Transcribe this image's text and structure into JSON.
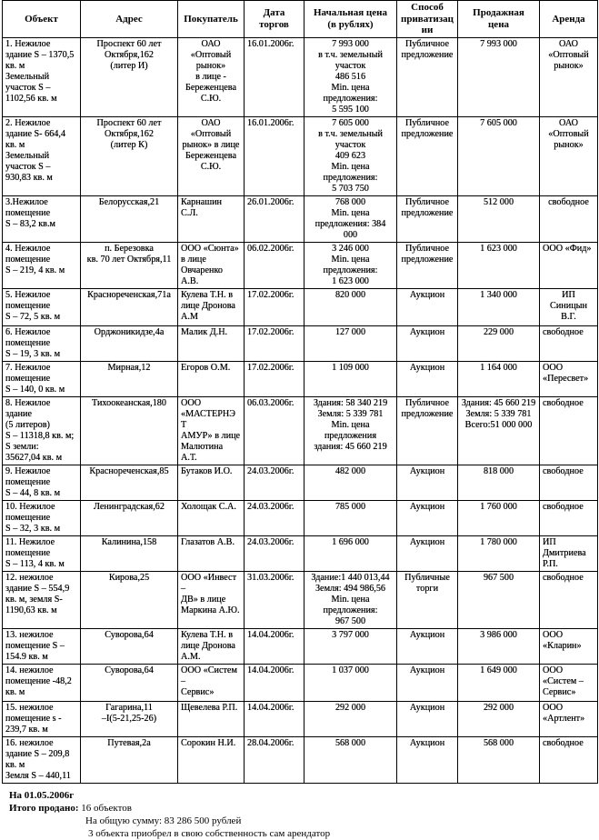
{
  "table": {
    "headers": [
      "Объект",
      "Адрес",
      "Покупатель",
      "Дата\nторгов",
      "Начальная цена\n(в рублях)",
      "Способ\nприватизации",
      "Продажная\nцена",
      "Аренда"
    ],
    "rows": [
      [
        "1. Нежилое\nздание S – 1370,5\nкв. м\nЗемельный\nучасток S –\n1102,56 кв. м",
        "Проспект 60 лет\nОктября,162\n(литер И)",
        "ОАО «Оптовый\nрынок»\nв лице  -\nБереженцева\nС.Ю.",
        "16.01.2006г.",
        "7 993 000\nв т.ч. земельный\nучасток\n486 516\nMin. цена\nпредложения:\n5 595 100",
        "Публичное\nпредложение",
        "7 993 000",
        "ОАО\n«Оптовый\nрынок»"
      ],
      [
        "2. Нежилое\nздание S- 664,4\nкв. м\nЗемельный\nучасток S –\n930,83 кв. м",
        "Проспект 60 лет\nОктября,162\n(литер К)",
        "ОАО «Оптовый\nрынок» в лице\nБереженцева\nС.Ю.",
        "16.01.2006г.",
        "7 605 000\nв т.ч. земельный\nучасток\n409 623\nMin. цена\nпредложения:\n5 703 750",
        "Публичное\nпредложение",
        "7 605 000",
        "ОАО\n«Оптовый\nрынок»"
      ],
      [
        "3.Нежилое\nпомещение\nS – 83,2 кв.м",
        "Белорусская,21",
        "Карнашин С.Л.",
        "26.01.2006г.",
        "768 000\nMin. цена\nпредложения: 384\n000",
        "Публичное\nпредложение",
        "512 000",
        "свободное"
      ],
      [
        "4. Нежилое\nпомещение\nS – 219, 4 кв. м",
        "п. Березовка\nкв. 70 лет Октября,11",
        "ООО «Сюнта»\nв лице\nОвчаренко А.В.",
        "06.02.2006г.",
        "3 246 000\nMin. цена\nпредложения:\n1 623 000",
        "Публичное\nпредложение",
        "1 623 000",
        "ООО «Фид»"
      ],
      [
        "5. Нежилое\nпомещение\nS – 72, 5 кв. м",
        "Краснореченская,71а",
        "Кулева Т.Н. в\nлице Дронова\nА.М",
        "17.02.2006г.",
        "820 000",
        "Аукцион",
        "1 340 000",
        "ИП Синицын\nВ.Г."
      ],
      [
        "6. Нежилое\nпомещение\nS – 19, 3 кв. м",
        "Орджоникидзе,4а",
        "Малик Д.Н.",
        "17.02.2006г.",
        "127 000",
        "Аукцион",
        "229 000",
        "свободное"
      ],
      [
        "7. Нежилое\nпомещение\nS – 140, 0 кв. м",
        "Мирная,12",
        "Егоров О.М.",
        "17.02.2006г.",
        "1 109 000",
        "Аукцион",
        "1 164 000",
        "ООО\n«Пересвет»"
      ],
      [
        "8. Нежилое\nздание\n(5 литеров)\nS – 11318,8 кв. м;\nS земли:\n35627,04 кв. м",
        "Тихоокеанская,180",
        "ООО\n«МАСТЕРНЭТ\nАМУР» в лице\nМалютина А.Т.",
        "06.03.2006г.",
        "Здания: 58 340 219\nЗемля: 5 339 781\nMin. цена\nпредложения\nздания: 45 660 219",
        "Публичное\nпредложение",
        "Здания: 45 660 219\nЗемля: 5 339 781\nВсего:51 000 000",
        "свободное"
      ],
      [
        "9. Нежилое\nпомещение\nS – 44, 8 кв. м",
        "Краснореченская,85",
        "Бутаков И.О.",
        "24.03.2006г.",
        "482 000",
        "Аукцион",
        "818 000",
        "свободное"
      ],
      [
        "10. Нежилое\nпомещение\nS – 32, 3 кв. м",
        "Ленинградская,62",
        "Холощак С.А.",
        "24.03.2006г.",
        "785 000",
        "Аукцион",
        "1 760 000",
        "свободное"
      ],
      [
        "11. Нежилое\nпомещение\nS – 113, 4 кв. м",
        "Калинина,158",
        "Глазатов А.В.",
        "24.03.2006г.",
        "1 696 000",
        "Аукцион",
        "1 780 000",
        "ИП\nДмитриева\nР.П."
      ],
      [
        "12. нежилое\nздание S – 554,9\nкв. м, земля S-\n1190,63 кв. м",
        "Кирова,25",
        "ООО «Инвест –\nДВ» в лице\nМаркина А.Ю.",
        "31.03.2006г.",
        "Здание:1 440 013,44\nЗемля: 494 986,56\nMin. цена\nпредложения:\n967 500",
        "Публичные\nторги",
        "967 500",
        "свободное"
      ],
      [
        "13. нежилое\nпомещение S –\n154.9 кв. м",
        "Суворова,64",
        "Кулева Т.Н. в\nлице Дронова\nА.М.",
        "14.04.2006г.",
        "3 797 000",
        "Аукцион",
        "3 986 000",
        "ООО\n«Кларин»"
      ],
      [
        "14. нежилое\nпомещение -48,2\nкв. м",
        "Суворова,64",
        "ООО «Систем –\nСервис»",
        "14.04.2006г.",
        "1 037 000",
        "Аукцион",
        "1 649 000",
        "ООО\n«Систем –\nСервис»"
      ],
      [
        "15. нежилое\nпомещение s -\n239,7 кв. м",
        "Гагарина,11\n–I(5-21,25-26)",
        "Щевелева Р.П.",
        "14.04.2006г.",
        "292 000",
        "Аукцион",
        "292 000",
        "ООО\n«Артлент»"
      ],
      [
        "16. нежилое\nздание S – 209,8\nкв. м\nЗемля S – 440,11",
        "Путевая,2а",
        "Сорокин Н.И.",
        "28.04.2006г.",
        "568 000",
        "Аукцион",
        "568 000",
        "свободное"
      ]
    ]
  },
  "footer": {
    "date": "На 01.05.2006г",
    "total_label": "Итого продано:",
    "total_value": "16 объектов",
    "sum": "На общую сумму: 83 286 500 рублей",
    "note": "3 объекта приобрел в свою собственность сам арендатор"
  }
}
